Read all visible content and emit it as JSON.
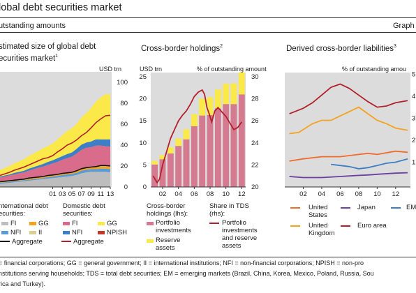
{
  "header": {
    "title": "lobal debt securities market",
    "subtitle": "utstanding amounts",
    "graph_label": "Graph"
  },
  "panels": {
    "left": {
      "title_line1": "stimated size of global debt",
      "title_line2": "ecurities market",
      "note": "1",
      "unit": "USD trn"
    },
    "mid": {
      "title": "Cross-border holdings",
      "note": "2",
      "unit_left": "USD trn",
      "unit_right": "% of outstanding amount"
    },
    "right": {
      "title": "Derived cross-border liabilities",
      "note": "3",
      "unit": "% of outstanding amou"
    }
  },
  "chart_data": [
    {
      "type": "area",
      "x": [
        "1990",
        "1991",
        "1992",
        "1993",
        "1994",
        "1995",
        "1996",
        "1997",
        "1998",
        "1999",
        "2000",
        "2001",
        "2002",
        "2003",
        "2004",
        "2005",
        "2006",
        "2007",
        "2008",
        "2009",
        "2010",
        "2011",
        "2012",
        "2013"
      ],
      "x_tick_labels": [
        "01",
        "03",
        "05",
        "07",
        "09",
        "11",
        "13"
      ],
      "ylim": [
        0,
        100
      ],
      "y_ticks": [
        "0",
        "20",
        "40",
        "60",
        "80",
        "100"
      ],
      "series": [
        {
          "name": "FI",
          "group": "International debt securities",
          "color": "#bdbdbd",
          "values": [
            3,
            3.5,
            4,
            4.5,
            5,
            5.5,
            6,
            6.5,
            7,
            7.5,
            8,
            8.5,
            9,
            9.5,
            10,
            10.5,
            11.5,
            13,
            14,
            14.5,
            14.5,
            14.5,
            14.5,
            14
          ]
        },
        {
          "name": "NFI",
          "group": "International debt securities",
          "color": "#5b9bd5",
          "values": [
            1,
            1,
            1,
            1,
            1,
            1,
            1,
            1,
            1,
            1,
            1.5,
            1.5,
            1.5,
            2,
            2,
            2,
            2,
            2.5,
            2.5,
            2.5,
            2.5,
            3,
            3,
            3
          ]
        },
        {
          "name": "GG",
          "group": "International debt securities",
          "color": "#f4a21d",
          "values": [
            0.5,
            0.5,
            0.5,
            0.5,
            0.5,
            0.5,
            1,
            1,
            1,
            1,
            1,
            1,
            1,
            1,
            1,
            1,
            1.5,
            1.5,
            1.5,
            1.5,
            2,
            2,
            2,
            2
          ]
        },
        {
          "name": "II",
          "group": "International debt securities",
          "color": "#d9cf96",
          "values": [
            0.5,
            0.5,
            0.5,
            0.5,
            0.5,
            0.5,
            0.5,
            0.5,
            0.5,
            0.5,
            0.5,
            0.5,
            0.5,
            0.5,
            0.5,
            0.5,
            0.5,
            0.5,
            0.5,
            0.5,
            1,
            1,
            1,
            1
          ]
        },
        {
          "name": "FI",
          "group": "Domestic debt securities",
          "color": "#d96c8a",
          "values": [
            4,
            4.5,
            5,
            5.5,
            6,
            6.5,
            7,
            8,
            9,
            9.5,
            10,
            11,
            12,
            13,
            14,
            15,
            16.5,
            18,
            19,
            19,
            19.5,
            19,
            18.5,
            18.5
          ]
        },
        {
          "name": "NFI",
          "group": "Domestic debt securities",
          "color": "#3e7ec4",
          "values": [
            1,
            1,
            1,
            1.5,
            1.5,
            1.5,
            2,
            2,
            2,
            2.5,
            3,
            3,
            3.5,
            3.5,
            4,
            4,
            4.5,
            5,
            5,
            5.5,
            6,
            6,
            6.5,
            7
          ]
        },
        {
          "name": "GG",
          "group": "Domestic debt securities",
          "color": "#fbe94a",
          "values": [
            6,
            7,
            8,
            9,
            10,
            11,
            12,
            13,
            14,
            15,
            15,
            16,
            18,
            20,
            22,
            23,
            24,
            26,
            28,
            32,
            36,
            40,
            43,
            43
          ]
        },
        {
          "name": "NPISH",
          "group": "Domestic debt securities",
          "color": "#c0392b",
          "values": [
            0,
            0,
            0,
            0,
            0,
            0,
            0,
            0,
            0,
            0,
            0,
            0,
            0,
            0,
            0,
            0,
            0,
            0,
            0,
            0,
            0,
            0,
            0,
            0
          ]
        }
      ],
      "lines": [
        {
          "name": "Aggregate",
          "group": "International debt securities",
          "color": "#111111",
          "values": [
            5,
            5.5,
            6,
            6.5,
            7,
            7.5,
            8.5,
            9,
            9.5,
            10,
            11,
            11.5,
            12,
            13,
            13.5,
            14,
            15.5,
            17.5,
            18.5,
            19,
            19.5,
            20.5,
            20.5,
            20
          ]
        },
        {
          "name": "Aggregate",
          "group": "Domestic debt securities",
          "color": "#b2202b",
          "values": [
            11,
            12.5,
            14,
            16,
            17.5,
            19,
            21,
            23,
            25,
            27,
            28,
            30,
            33.5,
            36.5,
            40,
            42,
            45,
            49,
            52,
            56.5,
            61.5,
            65,
            68,
            68.5
          ]
        }
      ]
    },
    {
      "type": "bar",
      "categories": [
        "2001",
        "2002",
        "2003",
        "2004",
        "2005",
        "2006",
        "2007",
        "2008",
        "2009",
        "2010",
        "2011",
        "2012"
      ],
      "x_tick_labels": [
        "02",
        "04",
        "06",
        "08",
        "10",
        "12"
      ],
      "ylim": [
        0,
        25
      ],
      "y_ticks": [
        "0",
        "5",
        "10",
        "15",
        "20",
        "25"
      ],
      "y2lim": [
        20,
        30
      ],
      "y2_ticks": [
        "20",
        "22",
        "24",
        "26",
        "28",
        "30"
      ],
      "series": [
        {
          "name": "Portfolio investments",
          "axis": "lhs",
          "color": "#d57b91",
          "values": [
            5.1,
            6.3,
            7.6,
            9.3,
            10.8,
            13.8,
            16.2,
            16.3,
            17.8,
            18.8,
            18.8,
            21.0
          ]
        },
        {
          "name": "Reserve assets",
          "axis": "lhs",
          "color": "#fbe94a",
          "values": [
            0.8,
            0.9,
            1.4,
            1.7,
            2.3,
            2.7,
            3.8,
            4.1,
            4.3,
            4.6,
            4.7,
            5.0
          ]
        }
      ],
      "lines": [
        {
          "name": "Portfolio investments and reserve assets",
          "axis": "rhs",
          "color": "#b2202b",
          "x": [
            2000.8,
            2001.3,
            2001.6,
            2002.0,
            2002.5,
            2003.0,
            2003.5,
            2004.0,
            2004.5,
            2005.0,
            2005.5,
            2006.0,
            2006.5,
            2007.0,
            2007.3,
            2007.6,
            2007.9,
            2008.2,
            2008.6,
            2009.0,
            2009.5,
            2010.0,
            2010.5,
            2011.0,
            2011.5,
            2012.0
          ],
          "values": [
            21.0,
            20.4,
            20.7,
            22.0,
            23.2,
            24.4,
            25.2,
            26.0,
            26.5,
            26.9,
            27.5,
            28.2,
            28.6,
            28.8,
            28.4,
            27.2,
            26.6,
            25.9,
            26.9,
            27.2,
            26.8,
            26.4,
            25.8,
            25.2,
            25.4,
            25.9
          ]
        }
      ],
      "legend": {
        "bars_title": "Cross-border holdings (lhs):",
        "lines_title": "Share in TDS (rhs):"
      }
    },
    {
      "type": "line",
      "x_tick_labels": [
        "02",
        "04",
        "06",
        "08",
        "10",
        "12"
      ],
      "y_ticks": [
        "1",
        "2",
        "3",
        "4",
        "5"
      ],
      "series": [
        {
          "name": "United States",
          "color": "#ef6c2a",
          "x": [
            2000.5,
            2002,
            2004,
            2006,
            2008,
            2009,
            2010,
            2012,
            2013.3
          ],
          "values": [
            1.05,
            1.15,
            1.25,
            1.25,
            1.35,
            1.4,
            1.35,
            1.5,
            1.45
          ]
        },
        {
          "name": "United Kingdom",
          "color": "#f4a21d",
          "x": [
            2000.5,
            2001.5,
            2003,
            2004,
            2005,
            2006,
            2007,
            2008,
            2009,
            2010,
            2011,
            2012,
            2013.3
          ],
          "values": [
            2.3,
            2.35,
            2.75,
            2.9,
            2.9,
            3.1,
            3.3,
            3.5,
            3.2,
            2.9,
            2.75,
            2.55,
            2.45
          ]
        },
        {
          "name": "Japan",
          "color": "#6b3fa0",
          "x": [
            2000.5,
            2002,
            2004,
            2006,
            2008,
            2009,
            2010,
            2012,
            2013.3
          ],
          "values": [
            0.35,
            0.3,
            0.3,
            0.35,
            0.4,
            0.42,
            0.45,
            0.5,
            0.52
          ]
        },
        {
          "name": "Euro area",
          "color": "#b2202b",
          "x": [
            2000.5,
            2002,
            2003,
            2004,
            2005,
            2006,
            2007,
            2008,
            2009,
            2010,
            2011,
            2012,
            2013.3
          ],
          "values": [
            3.2,
            3.45,
            3.7,
            4.05,
            4.4,
            4.55,
            4.35,
            4.05,
            3.75,
            3.5,
            3.55,
            3.7,
            3.8
          ]
        },
        {
          "name": "EM",
          "color": "#3e7ec4",
          "x": [
            2005,
            2006,
            2007,
            2008,
            2009,
            2010,
            2011,
            2012,
            2013.3
          ],
          "values": [
            0.9,
            0.85,
            0.8,
            0.7,
            0.75,
            0.85,
            0.95,
            1.0,
            1.15
          ]
        }
      ]
    }
  ],
  "legends": {
    "left_intl_title1": "nternational debt",
    "left_intl_title2": "ecurities:",
    "left_dom_title1": "Domestic debt",
    "left_dom_title2": "securities:",
    "fi": "FI",
    "gg": "GG",
    "nfi": "NFI",
    "ii": "II",
    "npish": "NPISH",
    "aggregate": "Aggregate",
    "mid_bars_1": "Cross-border",
    "mid_bars_2": "holdings (lhs):",
    "mid_lines_1": "Share in TDS",
    "mid_lines_2": "(rhs):",
    "portfolio_1": "Portfolio",
    "portfolio_2": "investments",
    "reserve_1": "Reserve",
    "reserve_2": "assets",
    "both_1": "Portfolio",
    "both_2": "investments",
    "both_3": "and reserve",
    "both_4": "assets",
    "us_1": "United",
    "us_2": "States",
    "japan": "Japan",
    "em": "EM",
    "uk_1": "United",
    "uk_2": "Kingdom",
    "euro": "Euro area"
  },
  "footnote": {
    "line1": "= financial corporations; GG = general government; II = international institutions; NFI = non-financial corporations; NPISH = non-pro",
    "line2": "nstitutions serving households; TDS = total debt securities; EM = emerging markets (Brazil, China, Korea, Mexico, Poland, Russia, Sou",
    "line3": "rica and Turkey)."
  }
}
